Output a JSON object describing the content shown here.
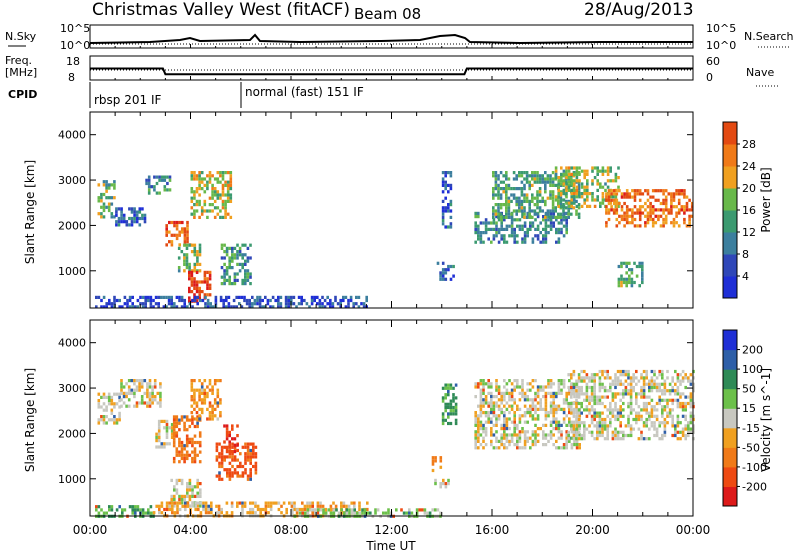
{
  "header": {
    "title": "Christmas Valley West (fitACF)",
    "beam": "Beam 08",
    "date": "28/Aug/2013"
  },
  "strips": {
    "nsky_label": "N.Sky",
    "nsearch_label": "N.Search",
    "nsky_ticks": [
      "10^5",
      "10^0"
    ],
    "nsearch_ticks": [
      "10^5",
      "10^0"
    ],
    "freq_label_line1": "Freq.",
    "freq_label_line2": "[MHz]",
    "freq_ticks": [
      "18",
      "8"
    ],
    "nave_label": "Nave",
    "nave_ticks": [
      "60",
      "0"
    ],
    "cpid_label": "CPID",
    "cpid_segments": [
      "rbsp 201 IF",
      "normal (fast) 151 IF"
    ],
    "freq_trace_mhz": [
      {
        "t": 0,
        "f": 12.8
      },
      {
        "t": 2.9,
        "f": 12.8
      },
      {
        "t": 3.0,
        "f": 10.4
      },
      {
        "t": 14.9,
        "f": 10.4
      },
      {
        "t": 15.0,
        "f": 12.8
      },
      {
        "t": 24,
        "f": 12.8
      }
    ]
  },
  "x_axis": {
    "label": "Time UT",
    "ticks": [
      "00:00",
      "04:00",
      "08:00",
      "12:00",
      "16:00",
      "20:00",
      "00:00"
    ],
    "range_hours": [
      0,
      24
    ]
  },
  "colors": {
    "power_scale": [
      "#1f2fd6",
      "#2f47b8",
      "#3c7f9e",
      "#3b9a70",
      "#68b84a",
      "#f0a020",
      "#f07a18",
      "#e34a12",
      "#dd1a1a"
    ],
    "velocity_scale": [
      "#1f2fd6",
      "#2e5fa8",
      "#2e8a56",
      "#6cc04a",
      "#c8c8c0",
      "#f0a020",
      "#f07a18",
      "#ee4a12",
      "#dd1a1a"
    ]
  },
  "chart_data": [
    {
      "type": "heatmap",
      "name": "Power",
      "ylabel": "Slant Range [km]",
      "xlabel": "Time UT",
      "ylim": [
        180,
        4500
      ],
      "yticks": [
        1000,
        2000,
        3000,
        4000
      ],
      "colorbar": {
        "label": "Power [dB]",
        "range": [
          0,
          32
        ],
        "ticks": [
          "4",
          "8",
          "12",
          "16",
          "20",
          "24",
          "28"
        ]
      },
      "regions": [
        {
          "t0": 0.3,
          "t1": 1.0,
          "r0": 2200,
          "r1": 3000,
          "level": 0.45
        },
        {
          "t0": 1.0,
          "t1": 2.2,
          "r0": 2000,
          "r1": 2400,
          "level": 0.2
        },
        {
          "t0": 2.2,
          "t1": 3.2,
          "r0": 2700,
          "r1": 3100,
          "level": 0.35
        },
        {
          "t0": 3.0,
          "t1": 4.0,
          "r0": 1600,
          "r1": 2100,
          "level": 0.8
        },
        {
          "t0": 3.5,
          "t1": 4.4,
          "r0": 1000,
          "r1": 1600,
          "level": 0.5
        },
        {
          "t0": 3.9,
          "t1": 4.8,
          "r0": 300,
          "r1": 1000,
          "level": 0.9
        },
        {
          "t0": 4.0,
          "t1": 5.6,
          "r0": 2200,
          "r1": 3200,
          "level": 0.55
        },
        {
          "t0": 5.2,
          "t1": 6.4,
          "r0": 700,
          "r1": 1600,
          "level": 0.35
        },
        {
          "t0": 0.2,
          "t1": 11.0,
          "r0": 200,
          "r1": 450,
          "level": 0.15
        },
        {
          "t0": 13.8,
          "t1": 14.5,
          "r0": 800,
          "r1": 1200,
          "level": 0.25
        },
        {
          "t0": 14.0,
          "t1": 14.4,
          "r0": 2000,
          "r1": 3200,
          "level": 0.2
        },
        {
          "t0": 15.3,
          "t1": 19.0,
          "r0": 1600,
          "r1": 2300,
          "level": 0.3
        },
        {
          "t0": 16.0,
          "t1": 19.5,
          "r0": 2200,
          "r1": 3200,
          "level": 0.4
        },
        {
          "t0": 18.5,
          "t1": 21.0,
          "r0": 2400,
          "r1": 3300,
          "level": 0.5
        },
        {
          "t0": 20.5,
          "t1": 24.0,
          "r0": 2000,
          "r1": 2800,
          "level": 0.75
        },
        {
          "t0": 21.0,
          "t1": 22.0,
          "r0": 700,
          "r1": 1200,
          "level": 0.4
        }
      ]
    },
    {
      "type": "heatmap",
      "name": "Velocity",
      "ylabel": "Slant Range [km]",
      "xlabel": "Time UT",
      "ylim": [
        180,
        4500
      ],
      "yticks": [
        1000,
        2000,
        3000,
        4000
      ],
      "colorbar": {
        "label": "Velocity [m s^-1]",
        "range": [
          -250,
          250
        ],
        "ticks": [
          "200",
          "100",
          "50",
          "15",
          "-15",
          "-50",
          "-100",
          "-200"
        ]
      },
      "regions": [
        {
          "t0": 0.3,
          "t1": 1.2,
          "r0": 2200,
          "r1": 2900,
          "v": 0
        },
        {
          "t0": 1.2,
          "t1": 2.8,
          "r0": 2600,
          "r1": 3200,
          "v": 0
        },
        {
          "t0": 2.6,
          "t1": 3.3,
          "r0": 1700,
          "r1": 2300,
          "v": 0
        },
        {
          "t0": 3.3,
          "t1": 4.4,
          "r0": 1400,
          "r1": 2400,
          "v": -80
        },
        {
          "t0": 4.0,
          "t1": 5.2,
          "r0": 2300,
          "r1": 3200,
          "v": -40
        },
        {
          "t0": 5.0,
          "t1": 6.6,
          "r0": 1000,
          "r1": 1800,
          "v": -110
        },
        {
          "t0": 5.3,
          "t1": 5.9,
          "r0": 1600,
          "r1": 2200,
          "v": -200
        },
        {
          "t0": 3.2,
          "t1": 4.4,
          "r0": 400,
          "r1": 1000,
          "v": 0
        },
        {
          "t0": 0.2,
          "t1": 2.5,
          "r0": 200,
          "r1": 420,
          "v": 60
        },
        {
          "t0": 2.5,
          "t1": 11.0,
          "r0": 200,
          "r1": 500,
          "v": -30
        },
        {
          "t0": 8.0,
          "t1": 14.0,
          "r0": 200,
          "r1": 350,
          "v": 30
        },
        {
          "t0": 14.0,
          "t1": 14.6,
          "r0": 2200,
          "r1": 3100,
          "v": 60
        },
        {
          "t0": 13.6,
          "t1": 14.0,
          "r0": 1200,
          "r1": 1500,
          "v": -70
        },
        {
          "t0": 15.3,
          "t1": 19.5,
          "r0": 1700,
          "r1": 3200,
          "v": 0
        },
        {
          "t0": 19.0,
          "t1": 24.0,
          "r0": 1900,
          "r1": 3400,
          "v": 0
        },
        {
          "t0": 13.7,
          "t1": 14.3,
          "r0": 800,
          "r1": 1000,
          "v": 0
        }
      ]
    }
  ]
}
